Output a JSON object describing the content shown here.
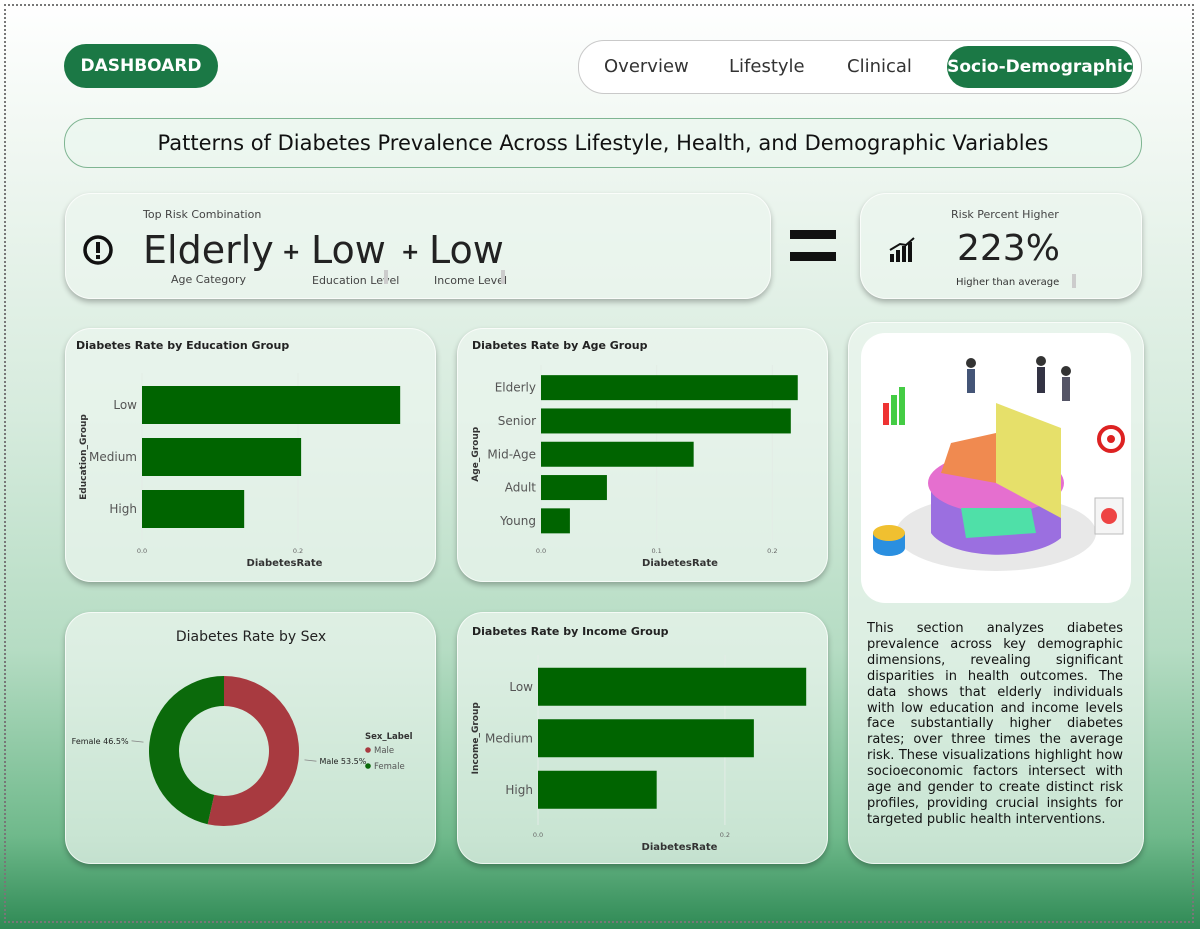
{
  "header": {
    "button": "DASHBOARD",
    "nav": [
      "Overview",
      "Lifestyle",
      "Clinical",
      "Socio-Demographic"
    ],
    "title": "Patterns of Diabetes Prevalence Across Lifestyle, Health, and  Demographic Variables"
  },
  "kpi": {
    "label": "Top Risk Combination",
    "items": [
      {
        "value": "Elderly",
        "label": "Age Category"
      },
      {
        "value": "Low",
        "label": "Education Level"
      },
      {
        "value": "Low",
        "label": "Income Level"
      }
    ],
    "joiner": "+",
    "risk_label": "Risk Percent Higher",
    "risk_value": "223%",
    "risk_caption": "Higher than average"
  },
  "chart_data": [
    {
      "type": "bar",
      "title": "Diabetes Rate by Education Group",
      "categories": [
        "Low",
        "Medium",
        "High"
      ],
      "values": [
        0.331,
        0.204,
        0.131
      ],
      "color": "#006400",
      "xlim": [
        0,
        0.35
      ],
      "xticks": [
        {
          "value": 0,
          "label": "0.0"
        },
        0.2
      ],
      "x_label": "DiabetesRate",
      "y_label": "Education_Group"
    },
    {
      "type": "bar",
      "title": "Diabetes Rate by Age Group",
      "categories": [
        "Elderly",
        "Senior",
        "Mid-Age",
        "Adult",
        "Young"
      ],
      "values": [
        0.222,
        0.216,
        0.132,
        0.057,
        0.025
      ],
      "color": "#006400",
      "xlim": [
        0,
        0.23
      ],
      "xticks": [
        {
          "value": 0,
          "label": "0.0"
        },
        0.1,
        0.2
      ],
      "x_label": "DiabetesRate",
      "y_label": "Age_Group"
    },
    {
      "type": "donut",
      "title": "Diabetes Rate by Sex",
      "categories": [
        "Male",
        "Female"
      ],
      "values": [
        53.5,
        46.5
      ],
      "value_labels": [
        "Male 53.5%",
        "Female 46.5%"
      ],
      "colors": [
        "#a83a40",
        "#0b6a0b"
      ],
      "legend_title": "Sex_Label"
    },
    {
      "type": "bar",
      "title": "Diabetes Rate by Income Group",
      "categories": [
        "Low",
        "Medium",
        "High"
      ],
      "values": [
        0.287,
        0.231,
        0.127
      ],
      "color": "#006400",
      "xlim": [
        0,
        0.29
      ],
      "xticks": [
        {
          "value": 0,
          "label": "0.0"
        },
        0.2
      ],
      "x_label": "DiabetesRate",
      "y_label": "Income_Group"
    }
  ],
  "description": "This section analyzes diabetes prevalence across key demographic dimensions, revealing significant disparities in health outcomes. The data shows that elderly individuals with low education and income levels face substantially higher diabetes rates; over three times the average risk. These visualizations highlight how socioeconomic factors intersect with age and gender to create distinct risk profiles, providing crucial insights for targeted public health interventions."
}
